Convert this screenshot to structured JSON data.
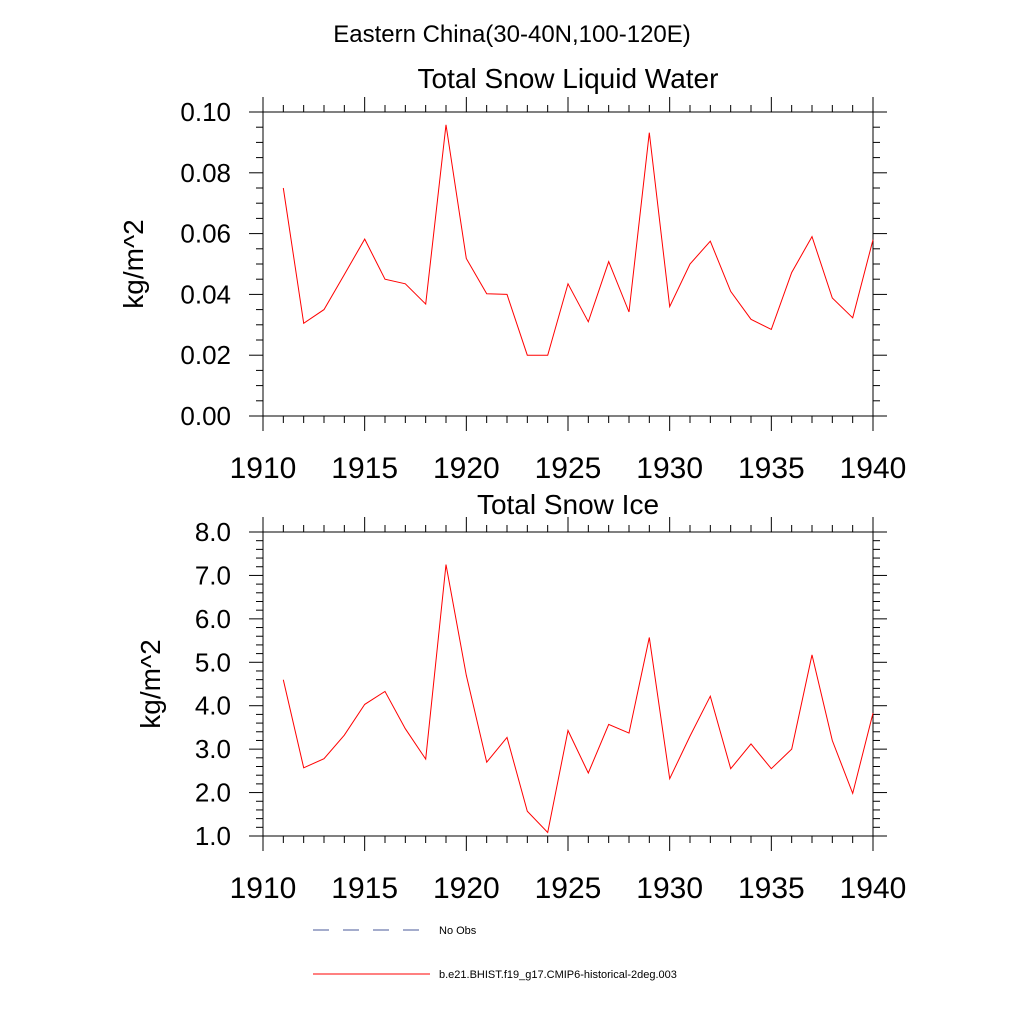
{
  "suptitle": "Eastern China(30-40N,100-120E)",
  "chart_data": [
    {
      "type": "line",
      "title": "Total Snow Liquid Water",
      "xlabel": "",
      "ylabel": "kg/m^2",
      "xlim": [
        1910,
        1940
      ],
      "ylim": [
        0,
        0.1
      ],
      "xticks": [
        "1910",
        "1915",
        "1920",
        "1925",
        "1930",
        "1935",
        "1940"
      ],
      "yticks": [
        "0.00",
        "0.02",
        "0.04",
        "0.06",
        "0.08",
        "0.10"
      ],
      "grid": false,
      "series": [
        {
          "name": "b.e21.BHIST.f19_g17.CMIP6-historical-2deg.003",
          "color": "#ff0000",
          "x": [
            1911,
            1912,
            1913,
            1914,
            1915,
            1916,
            1917,
            1918,
            1919,
            1920,
            1921,
            1922,
            1923,
            1924,
            1925,
            1926,
            1927,
            1928,
            1929,
            1930,
            1931,
            1932,
            1933,
            1934,
            1935,
            1936,
            1937,
            1938,
            1939,
            1940
          ],
          "y": [
            0.075,
            0.0305,
            0.035,
            0.0465,
            0.0582,
            0.045,
            0.0435,
            0.0368,
            0.0958,
            0.0518,
            0.0402,
            0.04,
            0.02,
            0.02,
            0.0435,
            0.031,
            0.0508,
            0.0342,
            0.0932,
            0.036,
            0.05,
            0.0575,
            0.041,
            0.0318,
            0.0285,
            0.0472,
            0.059,
            0.0388,
            0.0323,
            0.058
          ]
        }
      ]
    },
    {
      "type": "line",
      "title": "Total Snow Ice",
      "xlabel": "",
      "ylabel": "kg/m^2",
      "xlim": [
        1910,
        1940
      ],
      "ylim": [
        1,
        8
      ],
      "xticks": [
        "1910",
        "1915",
        "1920",
        "1925",
        "1930",
        "1935",
        "1940"
      ],
      "yticks": [
        "1.0",
        "2.0",
        "3.0",
        "4.0",
        "5.0",
        "6.0",
        "7.0",
        "8.0"
      ],
      "grid": false,
      "series": [
        {
          "name": "b.e21.BHIST.f19_g17.CMIP6-historical-2deg.003",
          "color": "#ff0000",
          "x": [
            1911,
            1912,
            1913,
            1914,
            1915,
            1916,
            1917,
            1918,
            1919,
            1920,
            1921,
            1922,
            1923,
            1924,
            1925,
            1926,
            1927,
            1928,
            1929,
            1930,
            1931,
            1932,
            1933,
            1934,
            1935,
            1936,
            1937,
            1938,
            1939,
            1940
          ],
          "y": [
            4.6,
            2.57,
            2.78,
            3.32,
            4.03,
            4.33,
            3.47,
            2.77,
            7.25,
            4.7,
            2.7,
            3.27,
            1.57,
            1.08,
            3.43,
            2.45,
            3.57,
            3.37,
            5.57,
            2.32,
            3.3,
            4.22,
            2.55,
            3.12,
            2.55,
            3.0,
            5.17,
            3.2,
            1.98,
            3.83
          ]
        }
      ]
    }
  ],
  "legend": {
    "placement": "bottom",
    "items": [
      {
        "label": "No Obs",
        "style": "dashed",
        "color": "#4a5a9a"
      },
      {
        "label": "b.e21.BHIST.f19_g17.CMIP6-historical-2deg.003",
        "style": "solid",
        "color": "#ff0000"
      }
    ]
  }
}
